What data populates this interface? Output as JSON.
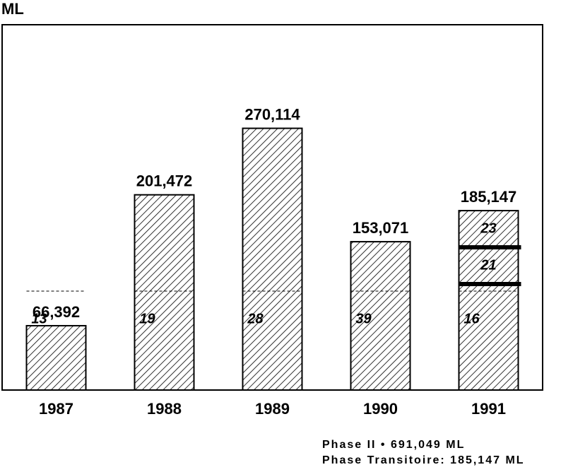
{
  "chart_data": {
    "type": "bar",
    "y_label": "ML",
    "categories": [
      "1987",
      "1988",
      "1989",
      "1990",
      "1991"
    ],
    "values": [
      66392,
      201472,
      270114,
      153071,
      185147
    ],
    "value_labels": [
      "66,392",
      "201,472",
      "270,114",
      "153,071",
      "185,147"
    ],
    "inner_labels": [
      [
        "13"
      ],
      [
        "19"
      ],
      [
        "28"
      ],
      [
        "39"
      ],
      [
        "16",
        "21",
        "23"
      ]
    ],
    "ylim": [
      0,
      377000
    ],
    "color": "#000000",
    "notes": [
      "Phase II • 691,049 ML",
      "Phase Transitoire:  185,147 ML"
    ]
  }
}
